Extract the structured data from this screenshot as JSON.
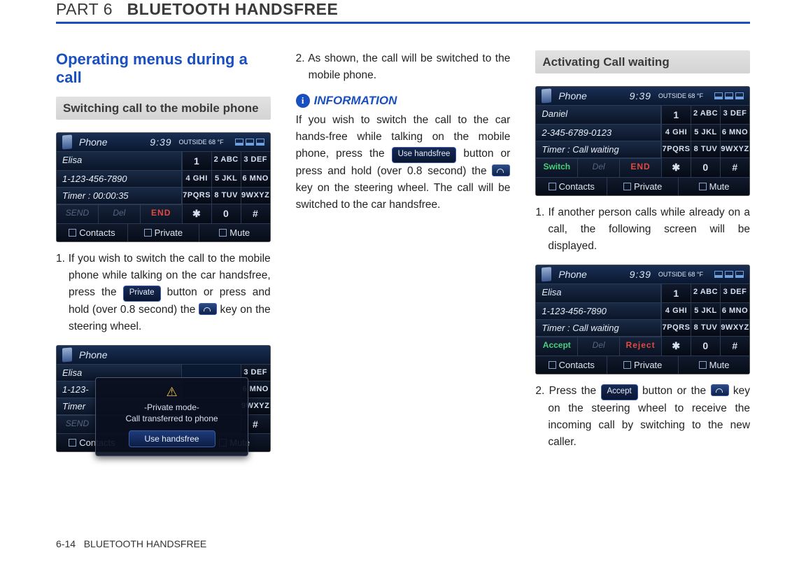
{
  "header": {
    "part": "PART 6",
    "title": "BLUETOOTH HANDSFREE"
  },
  "col1": {
    "section_title": "Operating menus during a call",
    "sub_band": "Switching call to the mobile phone",
    "shot1": {
      "top_title": "Phone",
      "time": "9:39",
      "temp": "OUTSIDE 68 °F",
      "r1": "Elisa",
      "k1a": "1",
      "k1b": "2 ABC",
      "k1c": "3 DEF",
      "r2": "1-123-456-7890",
      "k2a": "4 GHI",
      "k2b": "5 JKL",
      "k2c": "6 MNO",
      "r3": "Timer : 00:00:35",
      "k3a": "7PQRS",
      "k3b": "8 TUV",
      "k3c": "9WXYZ",
      "a1": "SEND",
      "a2": "Del",
      "a3": "END",
      "k4a": "✱",
      "k4b": "0",
      "k4c": "#",
      "b1": "Contacts",
      "b2": "Private",
      "b3": "Mute"
    },
    "p1_a": "1. If you wish to switch the call to the mobile phone while talking on the car handsfree, press the ",
    "p1_btn": "Private",
    "p1_b": " button or press and hold (over 0.8 second) the ",
    "p1_c": " key on the steering wheel.",
    "shot2": {
      "top_title": "Phone",
      "r1": "Elisa",
      "k1c": "3 DEF",
      "r2": "1-123-",
      "k2c": "6 MNO",
      "r3": "Timer",
      "k3c": "9WXYZ",
      "a1": "SEND",
      "k4c": "#",
      "overlay_line1": "-Private mode-",
      "overlay_line2": "Call transferred to phone",
      "overlay_btn": "Use handsfree",
      "b1": "Contacts",
      "b2": "Private",
      "b3": "Mute"
    }
  },
  "col2": {
    "p2": "2. As shown, the call will be switched to the mobile phone.",
    "info_label": "INFORMATION",
    "info_a": "If you wish to switch the call to the car hands-free while talking on the mobile phone, press the ",
    "info_btn": "Use handsfree",
    "info_b": " button or press and hold (over 0.8 second) the ",
    "info_c": " key on the steering wheel. The call will be switched to the car handsfree."
  },
  "col3": {
    "sub_band": "Activating Call waiting",
    "shotA": {
      "top_title": "Phone",
      "time": "9:39",
      "temp": "OUTSIDE 68 °F",
      "r1": "Daniel",
      "k1a": "1",
      "k1b": "2 ABC",
      "k1c": "3 DEF",
      "r2": "2-345-6789-0123",
      "k2a": "4 GHI",
      "k2b": "5 JKL",
      "k2c": "6 MNO",
      "r3": "Timer : Call waiting",
      "k3a": "7PQRS",
      "k3b": "8 TUV",
      "k3c": "9WXYZ",
      "a1": "Switch",
      "a2": "Del",
      "a3": "END",
      "k4a": "✱",
      "k4b": "0",
      "k4c": "#",
      "b1": "Contacts",
      "b2": "Private",
      "b3": "Mute"
    },
    "pA": "1. If another person calls while already on a call, the following screen will be displayed.",
    "shotB": {
      "top_title": "Phone",
      "time": "9:39",
      "temp": "OUTSIDE 68 °F",
      "r1": "Elisa",
      "k1a": "1",
      "k1b": "2 ABC",
      "k1c": "3 DEF",
      "r2": "1-123-456-7890",
      "k2a": "4 GHI",
      "k2b": "5 JKL",
      "k2c": "6 MNO",
      "r3": "Timer : Call waiting",
      "k3a": "7PQRS",
      "k3b": "8 TUV",
      "k3c": "9WXYZ",
      "a1": "Accept",
      "a2": "Del",
      "a3": "Reject",
      "k4a": "✱",
      "k4b": "0",
      "k4c": "#",
      "b1": "Contacts",
      "b2": "Private",
      "b3": "Mute"
    },
    "pB_a": "2. Press the ",
    "pB_btn": "Accept",
    "pB_b": " button or the ",
    "pB_c": " key on the steering wheel to receive the incoming call by switching to the new caller."
  },
  "footer": {
    "page": "6-14",
    "label": "BLUETOOTH HANDSFREE"
  }
}
